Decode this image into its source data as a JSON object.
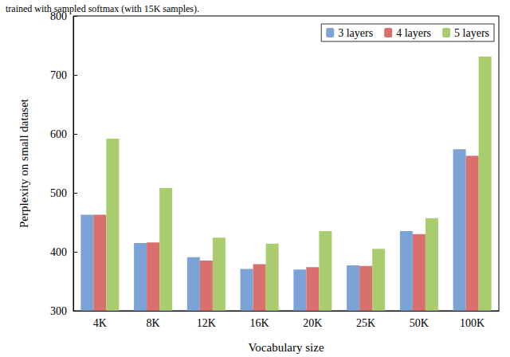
{
  "chart_data": {
    "type": "bar",
    "title": "trained with sampled softmax (with 15K samples).",
    "x_label": "Vocabulary size",
    "y_label": "Perplexity on small dataset",
    "categories": [
      "4K",
      "8K",
      "12K",
      "16K",
      "20K",
      "25K",
      "50K",
      "100K"
    ],
    "series": [
      {
        "name": "3 layers",
        "color": "#7ba3d6",
        "values": [
          463,
          415,
          391,
          371,
          370,
          377,
          435,
          574
        ]
      },
      {
        "name": "4 layers",
        "color": "#d9706e",
        "values": [
          463,
          416,
          385,
          379,
          374,
          376,
          430,
          563
        ]
      },
      {
        "name": "5 layers",
        "color": "#a9cc6f",
        "values": [
          592,
          508,
          424,
          414,
          435,
          405,
          457,
          731
        ]
      }
    ],
    "ylim": [
      300,
      800
    ],
    "yticks": [
      300,
      400,
      500,
      600,
      700
    ],
    "grid": false,
    "legend": "top-right"
  }
}
